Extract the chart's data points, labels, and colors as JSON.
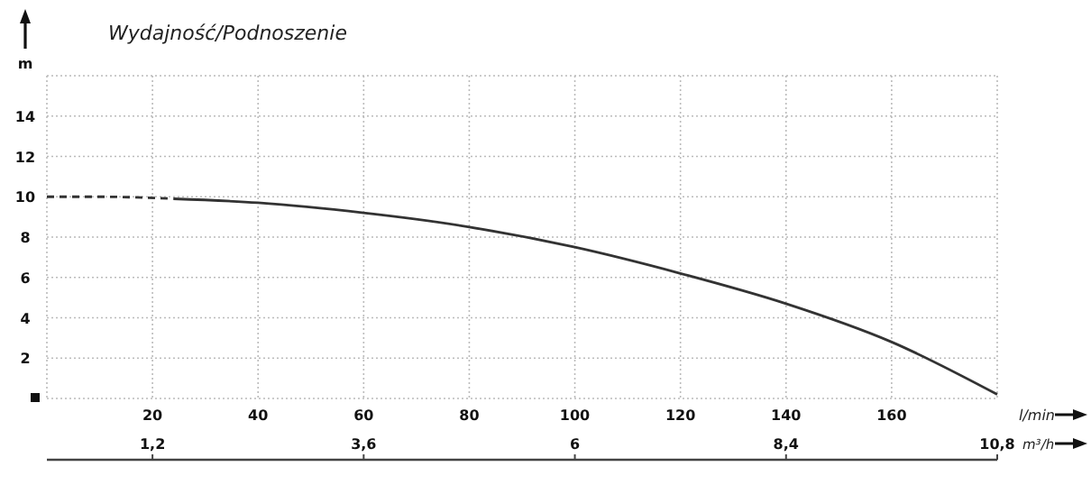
{
  "chart_data": {
    "type": "line",
    "title": "Wydajność/Podnoszenie",
    "ylabel": "m",
    "xlabel": "l/min",
    "x2label": "m³/h",
    "xlim": [
      0,
      180
    ],
    "xticks": [
      {
        "value": 0,
        "label": null
      },
      20,
      40,
      60,
      80,
      100,
      120,
      140,
      160,
      {
        "value": 180,
        "label": null
      }
    ],
    "x2lim": [
      0,
      10.8
    ],
    "x2ticks": [
      {
        "value": 1.2,
        "label": "1,2"
      },
      {
        "value": 3.6,
        "label": "3,6"
      },
      {
        "value": 6,
        "label": "6"
      },
      {
        "value": 8.4,
        "label": "8,4"
      },
      {
        "value": 10.8,
        "label": "10,8"
      }
    ],
    "ylim": [
      0,
      16
    ],
    "yticks": [
      {
        "value": 0,
        "label": null
      },
      2,
      4,
      6,
      8,
      10,
      12,
      14,
      {
        "value": 16,
        "label": null
      }
    ],
    "grid": true,
    "marker": "none",
    "series": [
      {
        "color": "#333333",
        "line_style": "dashed",
        "x": [
          0,
          10,
          24
        ],
        "values": [
          10,
          10,
          9.9
        ]
      },
      {
        "color": "#333333",
        "line_style": "solid",
        "x": [
          24,
          40,
          60,
          80,
          100,
          120,
          140,
          160,
          180
        ],
        "values": [
          9.9,
          9.7,
          9.2,
          8.5,
          7.5,
          6.2,
          4.7,
          2.8,
          0.2
        ]
      }
    ]
  }
}
